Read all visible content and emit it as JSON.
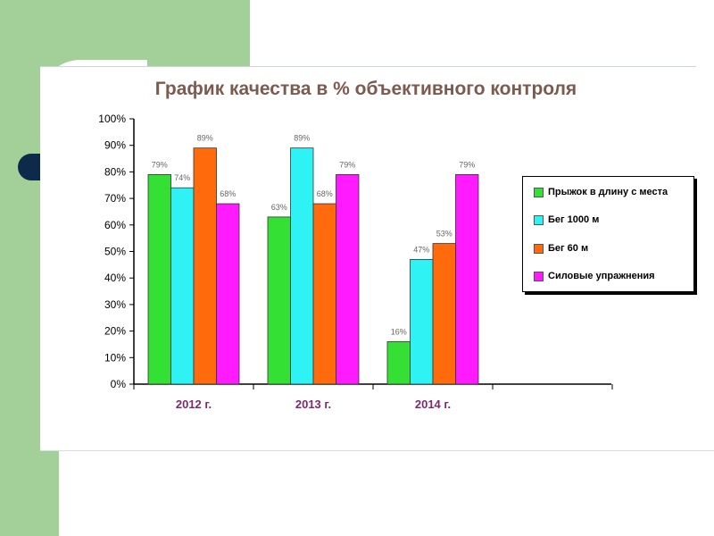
{
  "chart_data": {
    "type": "bar",
    "title": "График качества в % объективного контроля",
    "categories": [
      "2012 г.",
      "2013 г.",
      "2014 г."
    ],
    "series": [
      {
        "name": "Прыжок в длину с места",
        "color": "#33e033",
        "values": [
          79,
          63,
          16
        ]
      },
      {
        "name": "Бег 1000 м",
        "color": "#2ff2f5",
        "values": [
          74,
          89,
          47
        ]
      },
      {
        "name": "Бег 60 м",
        "color": "#ff6a0d",
        "values": [
          89,
          68,
          53
        ]
      },
      {
        "name": "Силовые упражнения",
        "color": "#ff1aff",
        "values": [
          68,
          79,
          79
        ]
      }
    ],
    "data_labels": [
      [
        "79%",
        "63%",
        "16%"
      ],
      [
        "74%",
        "89%",
        "47%"
      ],
      [
        "89%",
        "68%",
        "53%"
      ],
      [
        "68%",
        "79%",
        "79%"
      ]
    ],
    "y_ticks": [
      "0%",
      "10%",
      "20%",
      "30%",
      "40%",
      "50%",
      "60%",
      "70%",
      "80%",
      "90%",
      "100%"
    ],
    "ylim": [
      0,
      100
    ],
    "grid": false,
    "legend_position": "right"
  }
}
